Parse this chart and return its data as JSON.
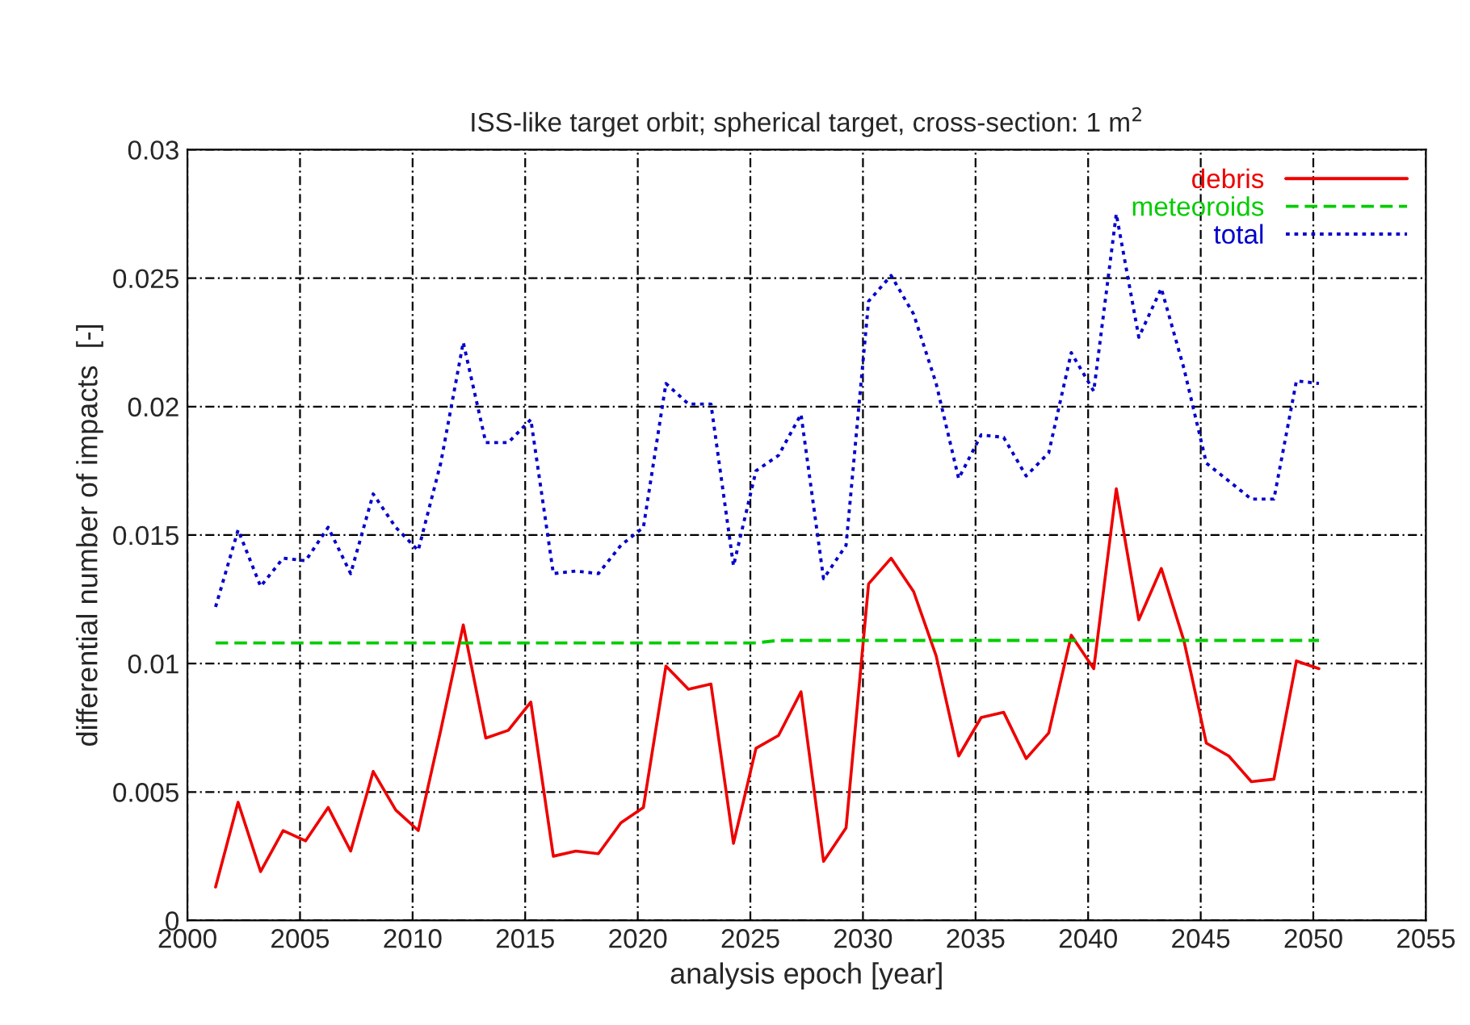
{
  "chart_data": {
    "type": "line",
    "title": "ISS-like target orbit; spherical target, cross-section: 1 m$^{2}$",
    "xlabel": "analysis epoch [year]",
    "ylabel": "differential number of impacts  [-]",
    "x": [
      2001.25,
      2002.25,
      2003.25,
      2004.25,
      2005.25,
      2006.25,
      2007.25,
      2008.25,
      2009.25,
      2010.25,
      2011.25,
      2012.25,
      2013.25,
      2014.25,
      2015.25,
      2016.25,
      2017.25,
      2018.25,
      2019.25,
      2020.25,
      2021.25,
      2022.25,
      2023.25,
      2024.25,
      2025.25,
      2026.25,
      2027.25,
      2028.25,
      2029.25,
      2030.25,
      2031.25,
      2032.25,
      2033.25,
      2034.25,
      2035.25,
      2036.25,
      2037.25,
      2038.25,
      2039.25,
      2040.25,
      2041.25,
      2042.25,
      2043.25,
      2044.25,
      2045.25,
      2046.25,
      2047.25,
      2048.25,
      2049.25,
      2050.25
    ],
    "series": [
      {
        "name": "debris",
        "color": "#ee0000",
        "line_style": "solid",
        "values": [
          0.0013,
          0.0046,
          0.0019,
          0.0035,
          0.0031,
          0.0044,
          0.0027,
          0.0058,
          0.0043,
          0.0035,
          0.0074,
          0.0115,
          0.0071,
          0.0074,
          0.0085,
          0.0025,
          0.0027,
          0.0026,
          0.0038,
          0.0044,
          0.0099,
          0.009,
          0.0092,
          0.003,
          0.0067,
          0.0072,
          0.0089,
          0.0023,
          0.0036,
          0.0131,
          0.0141,
          0.0128,
          0.0103,
          0.0064,
          0.0079,
          0.0081,
          0.0063,
          0.0073,
          0.0111,
          0.0098,
          0.0168,
          0.0117,
          0.0137,
          0.0109,
          0.0069,
          0.0064,
          0.0054,
          0.0055,
          0.0101,
          0.0098
        ]
      },
      {
        "name": "meteoroids",
        "color": "#00cc00",
        "line_style": "dashed",
        "values": [
          0.0108,
          0.0108,
          0.0108,
          0.0108,
          0.0108,
          0.0108,
          0.0108,
          0.0108,
          0.0108,
          0.0108,
          0.0108,
          0.0108,
          0.0108,
          0.0108,
          0.0108,
          0.0108,
          0.0108,
          0.0108,
          0.0108,
          0.0108,
          0.0108,
          0.0108,
          0.0108,
          0.0108,
          0.0108,
          0.0109,
          0.0109,
          0.0109,
          0.0109,
          0.0109,
          0.0109,
          0.0109,
          0.0109,
          0.0109,
          0.0109,
          0.0109,
          0.0109,
          0.0109,
          0.0109,
          0.0109,
          0.0109,
          0.0109,
          0.0109,
          0.0109,
          0.0109,
          0.0109,
          0.0109,
          0.0109,
          0.0109,
          0.0109
        ]
      },
      {
        "name": "total",
        "color": "#0000cc",
        "line_style": "dotted",
        "values": [
          0.0122,
          0.0152,
          0.013,
          0.0141,
          0.014,
          0.0153,
          0.0135,
          0.0166,
          0.0153,
          0.0144,
          0.0178,
          0.0225,
          0.0186,
          0.0186,
          0.0195,
          0.0135,
          0.0136,
          0.0135,
          0.0146,
          0.0153,
          0.0209,
          0.0201,
          0.0201,
          0.0138,
          0.0175,
          0.0181,
          0.0197,
          0.0133,
          0.0146,
          0.0241,
          0.0251,
          0.0236,
          0.0209,
          0.0172,
          0.0189,
          0.0188,
          0.0173,
          0.0182,
          0.0221,
          0.0206,
          0.0275,
          0.0227,
          0.0246,
          0.0215,
          0.0178,
          0.0171,
          0.0164,
          0.0164,
          0.021,
          0.0209
        ]
      }
    ],
    "xlim": [
      2000,
      2055
    ],
    "xticks": [
      2000,
      2005,
      2010,
      2015,
      2020,
      2025,
      2030,
      2035,
      2040,
      2045,
      2050,
      2055
    ],
    "ylim": [
      0,
      0.03
    ],
    "yticks": [
      0,
      0.005,
      0.01,
      0.015,
      0.02,
      0.025,
      0.03
    ],
    "grid": true,
    "legend": "top right"
  }
}
